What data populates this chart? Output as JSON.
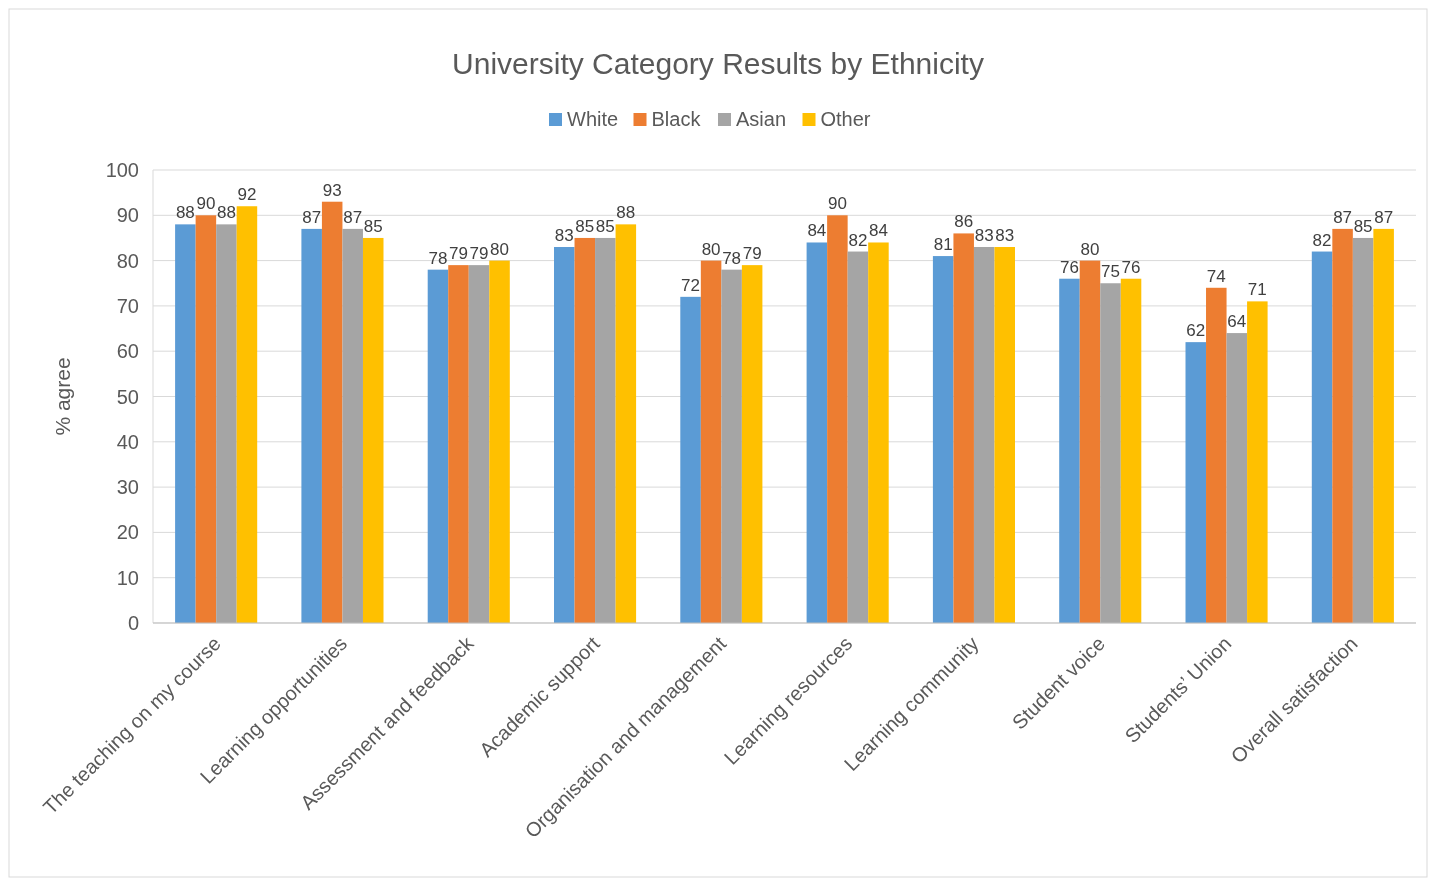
{
  "chart_data": {
    "type": "bar",
    "title": "University Category Results by Ethnicity",
    "ylabel": "% agree",
    "categories": [
      "The teaching on my course",
      "Learning opportunities",
      "Assessment and feedback",
      "Academic support",
      "Organisation and management",
      "Learning resources",
      "Learning community",
      "Student voice",
      "Students’ Union",
      "Overall satisfaction"
    ],
    "series": [
      {
        "name": "White",
        "color": "#5b9bd5",
        "values": [
          88,
          87,
          78,
          83,
          72,
          84,
          81,
          76,
          62,
          82
        ]
      },
      {
        "name": "Black",
        "color": "#ed7d31",
        "values": [
          90,
          93,
          79,
          85,
          80,
          90,
          86,
          80,
          74,
          87
        ]
      },
      {
        "name": "Asian",
        "color": "#a5a5a5",
        "values": [
          88,
          87,
          79,
          85,
          78,
          82,
          83,
          75,
          64,
          85
        ]
      },
      {
        "name": "Other",
        "color": "#ffc000",
        "values": [
          92,
          85,
          80,
          88,
          79,
          84,
          83,
          76,
          71,
          87
        ]
      }
    ],
    "ylim": [
      0,
      100
    ],
    "yticks": [
      0,
      10,
      20,
      30,
      40,
      50,
      60,
      70,
      80,
      90,
      100
    ],
    "grid": "y",
    "legend": "top",
    "data_labels": true
  }
}
